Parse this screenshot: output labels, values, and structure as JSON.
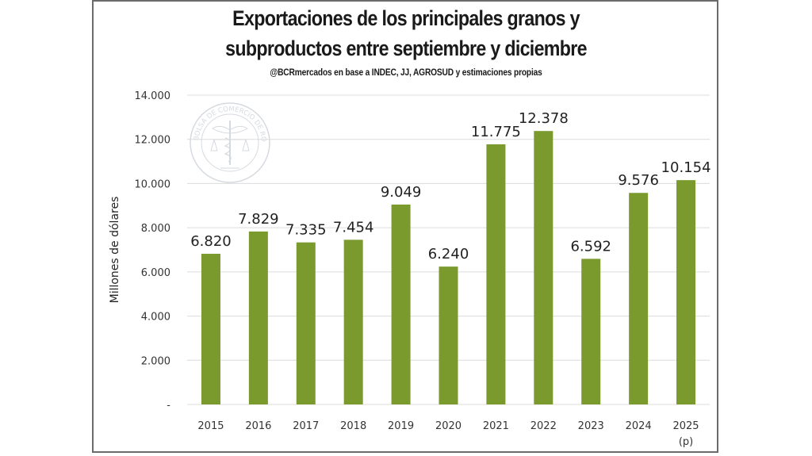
{
  "chart_data": {
    "type": "bar",
    "title": "Exportaciones de los principales granos y subproductos entre septiembre y diciembre",
    "title_lines": [
      "Exportaciones de los principales granos y",
      "subproductos entre septiembre y diciembre"
    ],
    "subtitle": "@BCRmercados en base a INDEC, JJ, AGROSUD y estimaciones propias",
    "xlabel": "",
    "ylabel": "Millones de dólares",
    "categories": [
      "2015",
      "2016",
      "2017",
      "2018",
      "2019",
      "2020",
      "2021",
      "2022",
      "2023",
      "2024",
      "2025"
    ],
    "category_notes": {
      "2025": "(p)"
    },
    "values": [
      6820,
      7829,
      7335,
      7454,
      9049,
      6240,
      11775,
      12378,
      6592,
      9576,
      10154
    ],
    "value_labels": [
      "6.820",
      "7.829",
      "7.335",
      "7.454",
      "9.049",
      "6.240",
      "11.775",
      "12.378",
      "6.592",
      "9.576",
      "10.154"
    ],
    "ylim": [
      0,
      14000
    ],
    "yticks": [
      0,
      2000,
      4000,
      6000,
      8000,
      10000,
      12000,
      14000
    ],
    "ytick_labels": [
      "-",
      "2.000",
      "4.000",
      "6.000",
      "8.000",
      "10.000",
      "12.000",
      "14.000"
    ],
    "grid": true,
    "legend": "none",
    "bar_color": "#7a9a2e",
    "watermark": "BOLSA DE COMERCIO DE ROSARIO"
  }
}
